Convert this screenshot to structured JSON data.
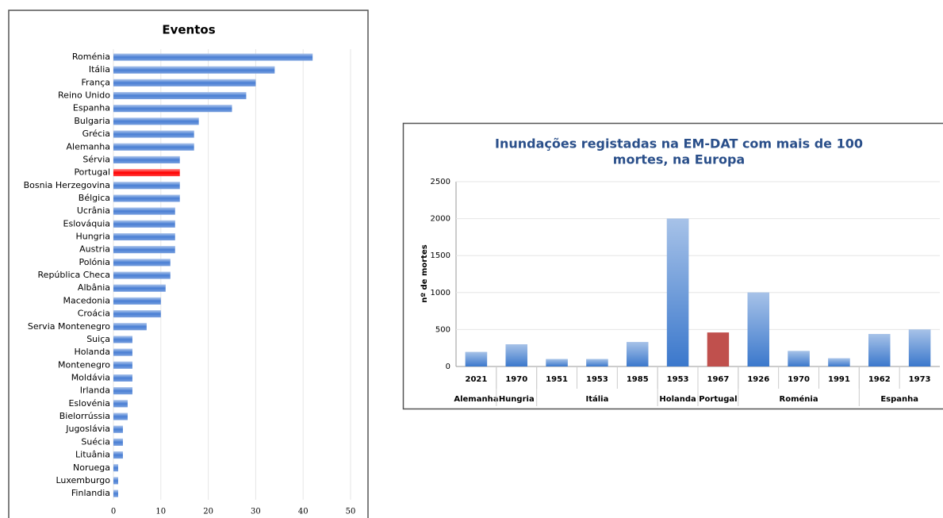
{
  "chart_data": [
    {
      "type": "hbar",
      "title": "Eventos",
      "categories": [
        "Roménia",
        "Itália",
        "França",
        "Reino Unido",
        "Espanha",
        "Bulgaria",
        "Grécia",
        "Alemanha",
        "Sérvia",
        "Portugal",
        "Bosnia Herzegovina",
        "Bélgica",
        "Ucrânia",
        "Eslováquia",
        "Hungria",
        "Austria",
        "Polónia",
        "República Checa",
        "Albânia",
        "Macedonia",
        "Croácia",
        "Servia Montenegro",
        "Suiça",
        "Holanda",
        "Montenegro",
        "Moldávia",
        "Irlanda",
        "Eslovénia",
        "Bielorrússia",
        "Jugoslávia",
        "Suécia",
        "Lituânia",
        "Noruega",
        "Luxemburgo",
        "Finlandia"
      ],
      "values": [
        42,
        34,
        30,
        28,
        25,
        18,
        17,
        17,
        14,
        14,
        14,
        14,
        13,
        13,
        13,
        13,
        12,
        12,
        11,
        10,
        10,
        7,
        4,
        4,
        4,
        4,
        4,
        3,
        3,
        2,
        2,
        2,
        1,
        1,
        1
      ],
      "colors": [
        "#4a7fd4",
        "#4a7fd4",
        "#4a7fd4",
        "#4a7fd4",
        "#4a7fd4",
        "#4a7fd4",
        "#4a7fd4",
        "#4a7fd4",
        "#4a7fd4",
        "#ff0000",
        "#4a7fd4",
        "#4a7fd4",
        "#4a7fd4",
        "#4a7fd4",
        "#4a7fd4",
        "#4a7fd4",
        "#4a7fd4",
        "#4a7fd4",
        "#4a7fd4",
        "#4a7fd4",
        "#4a7fd4",
        "#4a7fd4",
        "#4a7fd4",
        "#4a7fd4",
        "#4a7fd4",
        "#4a7fd4",
        "#4a7fd4",
        "#4a7fd4",
        "#4a7fd4",
        "#4a7fd4",
        "#4a7fd4",
        "#4a7fd4",
        "#4a7fd4",
        "#4a7fd4",
        "#4a7fd4"
      ],
      "xlim": [
        0,
        50
      ],
      "xticks": [
        0,
        10,
        20,
        30,
        40,
        50
      ],
      "grid": true
    },
    {
      "type": "grouped-bar",
      "title": [
        "Inundações registadas na EM-DAT com mais de 100",
        "mortes, na Europa"
      ],
      "ylabel": "nº de mortes",
      "groups": [
        {
          "name": "Alemanha",
          "color": "#3b78cc",
          "categories": [
            "2021"
          ],
          "values": [
            196
          ]
        },
        {
          "name": "Hungria",
          "color": "#3b78cc",
          "categories": [
            "1970"
          ],
          "values": [
            300
          ]
        },
        {
          "name": "Itália",
          "color": "#3b78cc",
          "categories": [
            "1951",
            "1953",
            "1985"
          ],
          "values": [
            100,
            100,
            330
          ]
        },
        {
          "name": "Holanda",
          "color": "#3b78cc",
          "categories": [
            "1953"
          ],
          "values": [
            2000
          ]
        },
        {
          "name": "Portugal",
          "color": "#c0504d",
          "categories": [
            "1967"
          ],
          "values": [
            460
          ]
        },
        {
          "name": "Roménia",
          "color": "#3b78cc",
          "categories": [
            "1926",
            "1970",
            "1991"
          ],
          "values": [
            1000,
            210,
            110
          ]
        },
        {
          "name": "Espanha",
          "color": "#3b78cc",
          "categories": [
            "1962",
            "1973"
          ],
          "values": [
            440,
            500
          ]
        }
      ],
      "ylim": [
        0,
        2500
      ],
      "yticks": [
        0,
        500,
        1000,
        1500,
        2000,
        2500
      ],
      "grid": true
    }
  ]
}
